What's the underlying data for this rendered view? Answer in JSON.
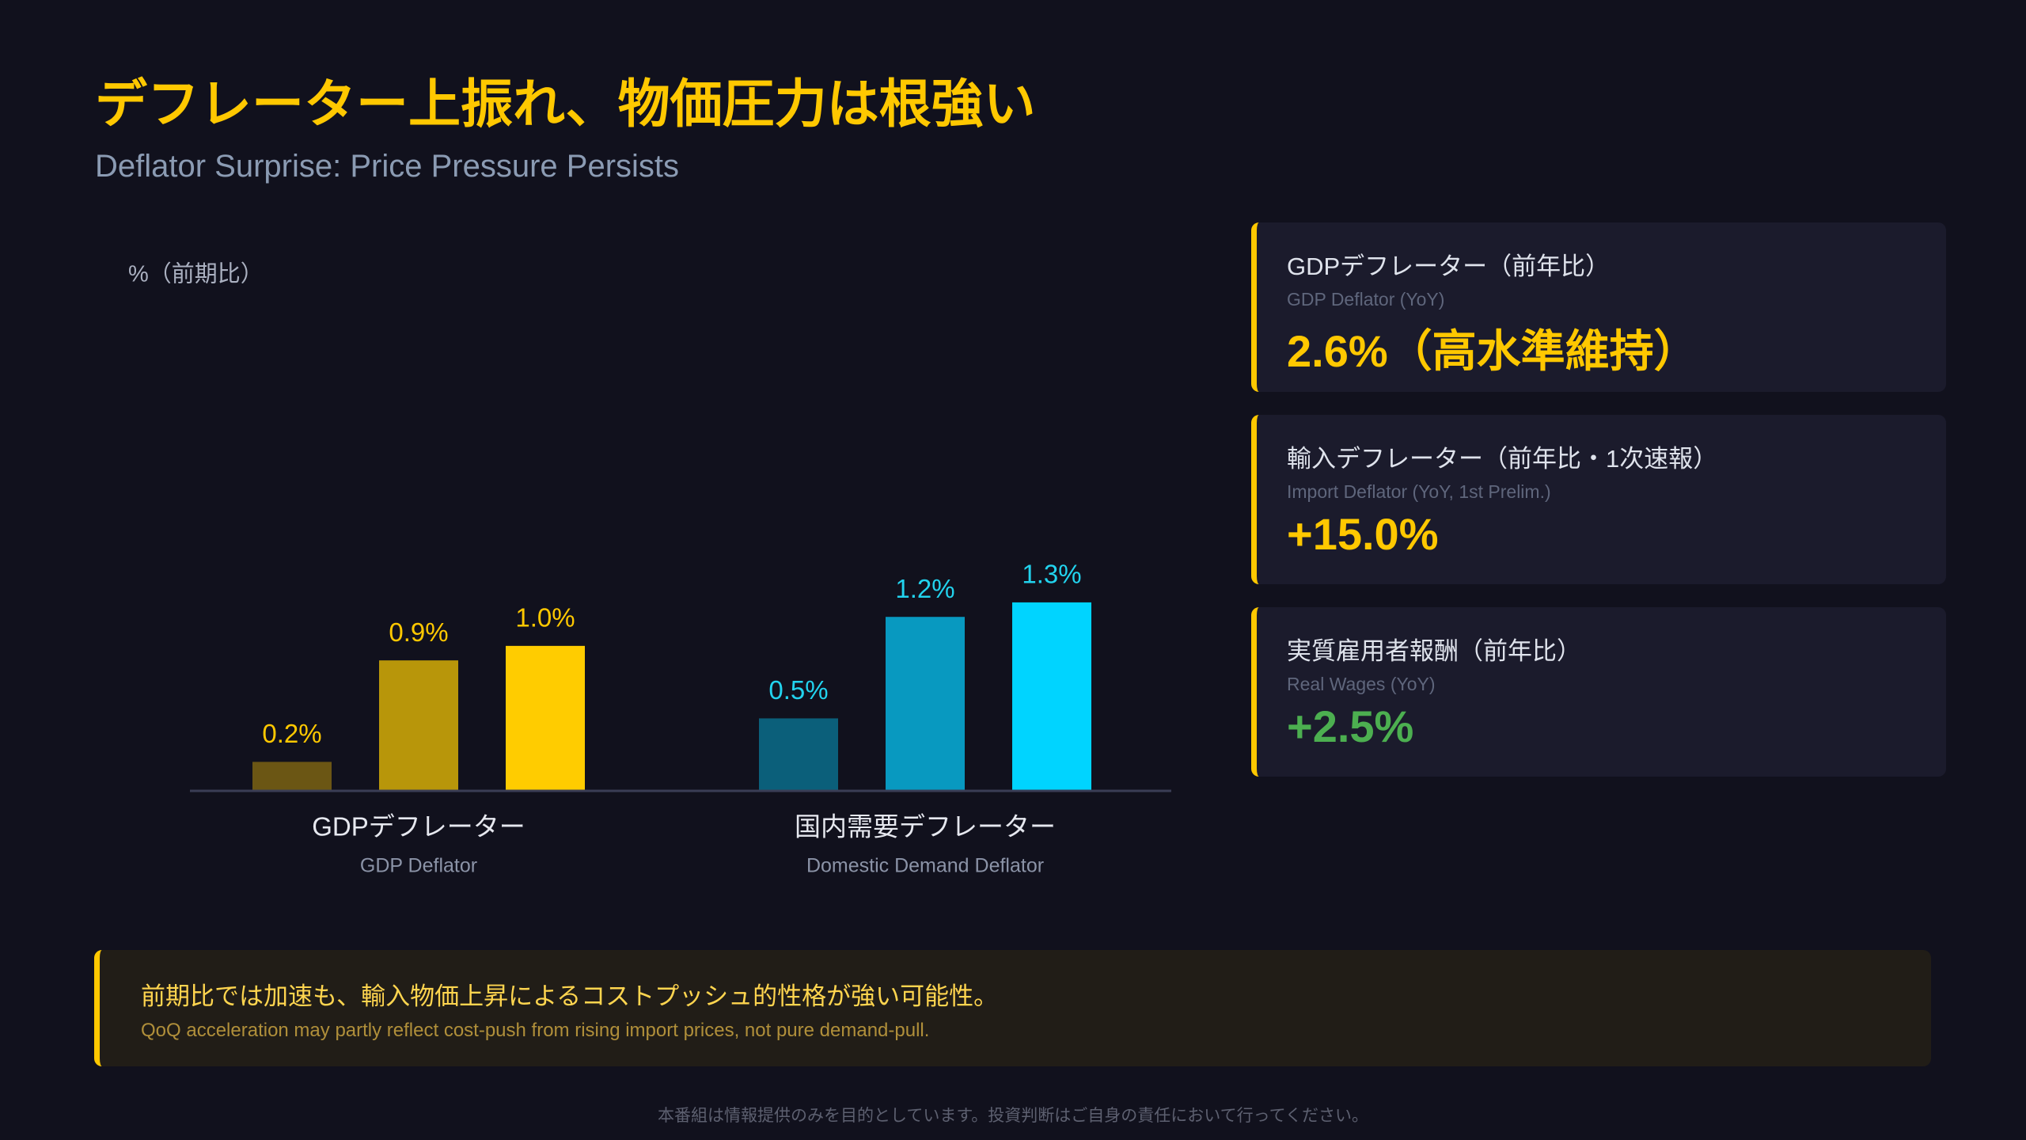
{
  "header": {
    "title": "デフレーター上振れ、物価圧力は根強い",
    "subtitle": "Deflator Surprise: Price Pressure Persists"
  },
  "chart_data": {
    "type": "bar",
    "ylabel": "%（前期比）",
    "categories": [
      "GDPデフレーター",
      "国内需要デフレーター"
    ],
    "category_subtitles": [
      "GDP Deflator",
      "Domestic Demand Deflator"
    ],
    "label_colors": [
      "#ffc800",
      "#22d3ee"
    ],
    "series": [
      {
        "colors": [
          "#6b5614",
          "#0b5f7a"
        ],
        "values": [
          0.2,
          0.5
        ],
        "value_labels": [
          "0.2%",
          "0.5%"
        ]
      },
      {
        "colors": [
          "#b8960a",
          "#0899c0"
        ],
        "values": [
          0.9,
          1.2
        ],
        "value_labels": [
          "0.9%",
          "1.2%"
        ]
      },
      {
        "colors": [
          "#ffcc00",
          "#00d4ff"
        ],
        "values": [
          1.0,
          1.3
        ],
        "value_labels": [
          "1.0%",
          "1.3%"
        ]
      }
    ],
    "ylim": [
      0,
      3.5
    ]
  },
  "cards": [
    {
      "title": "GDPデフレーター（前年比）",
      "subtitle": "GDP Deflator (YoY)",
      "value": "2.6%（高水準維持）",
      "value_color": "#ffc800"
    },
    {
      "title": "輸入デフレーター（前年比・1次速報）",
      "subtitle": "Import Deflator (YoY, 1st Prelim.)",
      "value": "+15.0%",
      "value_color": "#ffc800"
    },
    {
      "title": "実質雇用者報酬（前年比）",
      "subtitle": "Real Wages (YoY)",
      "value": "+2.5%",
      "value_color": "#4caf50"
    }
  ],
  "note": {
    "text": "前期比では加速も、輸入物価上昇によるコストプッシュ的性格が強い可能性。",
    "subtext": "QoQ acceleration may partly reflect cost-push from rising import prices, not pure demand-pull."
  },
  "footer": "本番組は情報提供のみを目的としています。投資判断はご自身の責任において行ってください。"
}
